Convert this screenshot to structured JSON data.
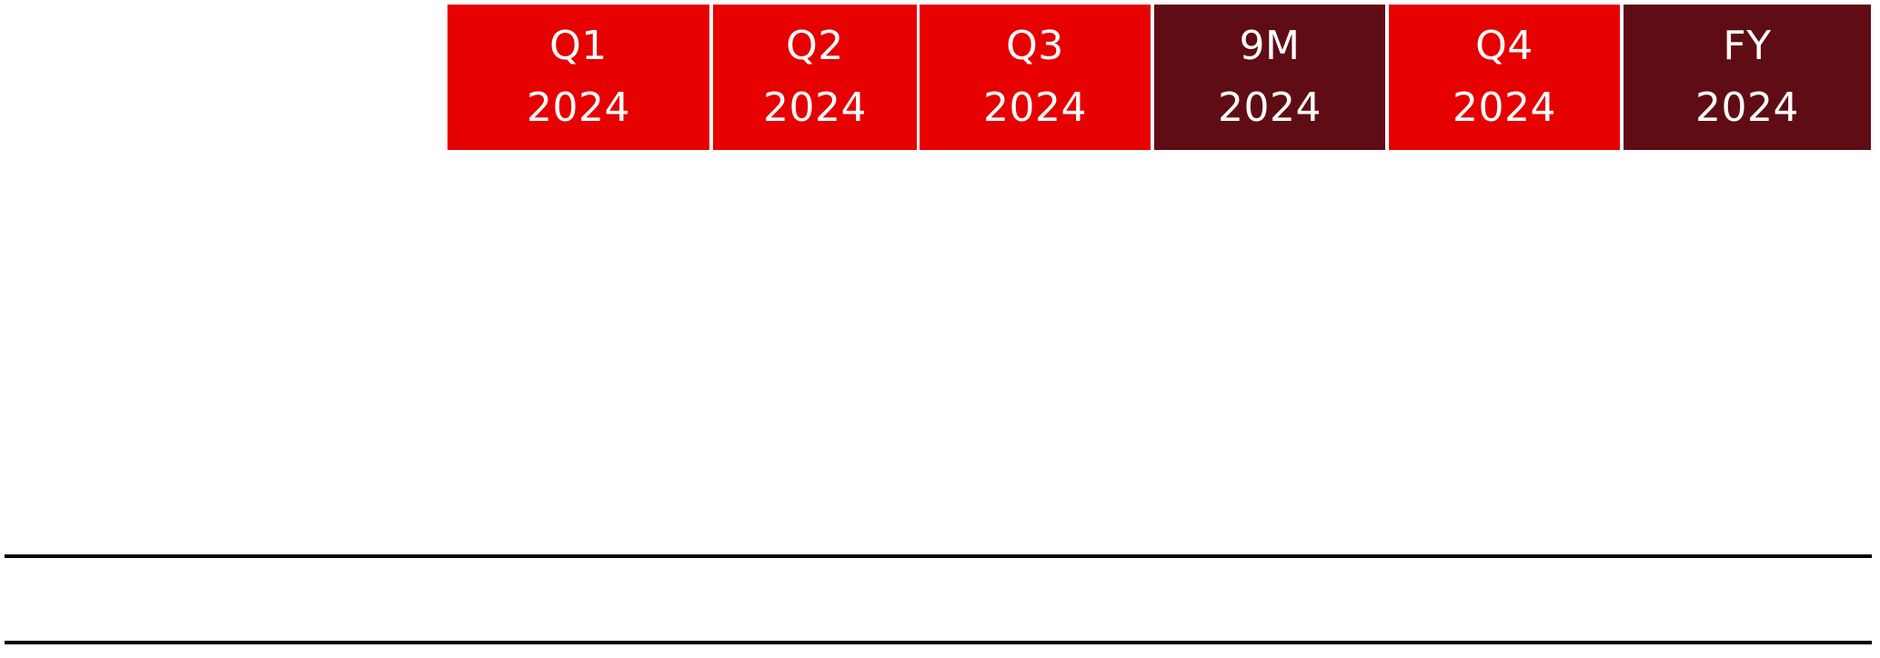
{
  "colors": {
    "quarter": "#e60000",
    "cumulative": "#600c15",
    "rule": "#000000"
  },
  "table": {
    "columns": [
      {
        "period": "Q1",
        "year": "2024",
        "kind": "quarter"
      },
      {
        "period": "Q2",
        "year": "2024",
        "kind": "quarter"
      },
      {
        "period": "Q3",
        "year": "2024",
        "kind": "quarter"
      },
      {
        "period": "9M",
        "year": "2024",
        "kind": "cumulative"
      },
      {
        "period": "Q4",
        "year": "2024",
        "kind": "quarter"
      },
      {
        "period": "FY",
        "year": "2024",
        "kind": "cumulative"
      }
    ]
  }
}
